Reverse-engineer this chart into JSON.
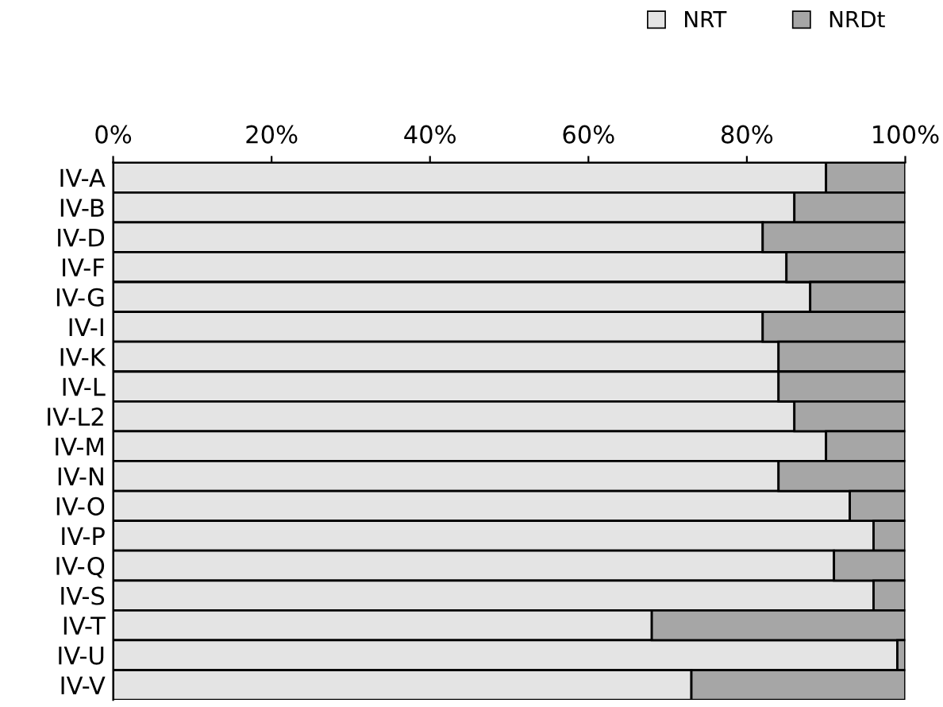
{
  "chart_data": {
    "type": "bar",
    "orientation": "horizontal",
    "stacked": true,
    "categories": [
      "IV-A",
      "IV-B",
      "IV-D",
      "IV-F",
      "IV-G",
      "IV-I",
      "IV-K",
      "IV-L",
      "IV-L2",
      "IV-M",
      "IV-N",
      "IV-O",
      "IV-P",
      "IV-Q",
      "IV-S",
      "IV-T",
      "IV-U",
      "IV-V"
    ],
    "series": [
      {
        "name": "NRT",
        "color": "#e4e4e4",
        "values": [
          90,
          86,
          82,
          85,
          88,
          82,
          84,
          84,
          86,
          90,
          84,
          93,
          96,
          91,
          96,
          68,
          99,
          73
        ]
      },
      {
        "name": "NRDt",
        "color": "#a6a6a6",
        "values": [
          10,
          14,
          18,
          15,
          12,
          18,
          16,
          16,
          14,
          10,
          16,
          7,
          4,
          9,
          4,
          32,
          1,
          27
        ]
      }
    ],
    "xlim": [
      0,
      100
    ],
    "xticks": [
      {
        "value": 0,
        "label": "0%"
      },
      {
        "value": 20,
        "label": "20%"
      },
      {
        "value": 40,
        "label": "40%"
      },
      {
        "value": 60,
        "label": "60%"
      },
      {
        "value": 80,
        "label": "80%"
      },
      {
        "value": 100,
        "label": "100%"
      }
    ],
    "grid": false,
    "legend": "top right"
  }
}
